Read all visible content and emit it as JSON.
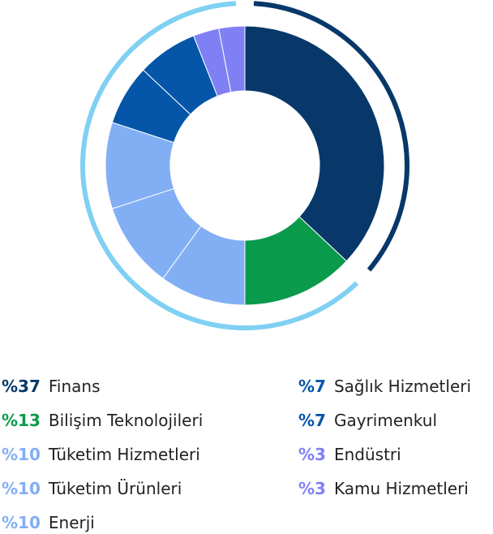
{
  "chart_data": {
    "type": "pie",
    "style": "donut",
    "series": [
      {
        "label": "Finans",
        "value": 37,
        "pct_text": "%37",
        "color": "#073869"
      },
      {
        "label": "Bilişim Teknolojileri",
        "value": 13,
        "pct_text": "%13",
        "color": "#0a9a4b"
      },
      {
        "label": "Tüketim Hizmetleri",
        "value": 10,
        "pct_text": "%10",
        "color": "#82aff4"
      },
      {
        "label": "Tüketim Ürünleri",
        "value": 10,
        "pct_text": "%10",
        "color": "#82aff4"
      },
      {
        "label": "Enerji",
        "value": 10,
        "pct_text": "%10",
        "color": "#82aff4"
      },
      {
        "label": "Sağlık Hizmetleri",
        "value": 7,
        "pct_text": "%7",
        "color": "#0556a8"
      },
      {
        "label": "Gayrimenkul",
        "value": 7,
        "pct_text": "%7",
        "color": "#0556a8"
      },
      {
        "label": "Endüstri",
        "value": 3,
        "pct_text": "%3",
        "color": "#8080f5"
      },
      {
        "label": "Kamu Hizmetleri",
        "value": 3,
        "pct_text": "%3",
        "color": "#8080f5"
      }
    ],
    "outer_ring_colors": {
      "dark": "#073869",
      "light": "#7fd0f2"
    },
    "legend_placement": "bottom"
  }
}
